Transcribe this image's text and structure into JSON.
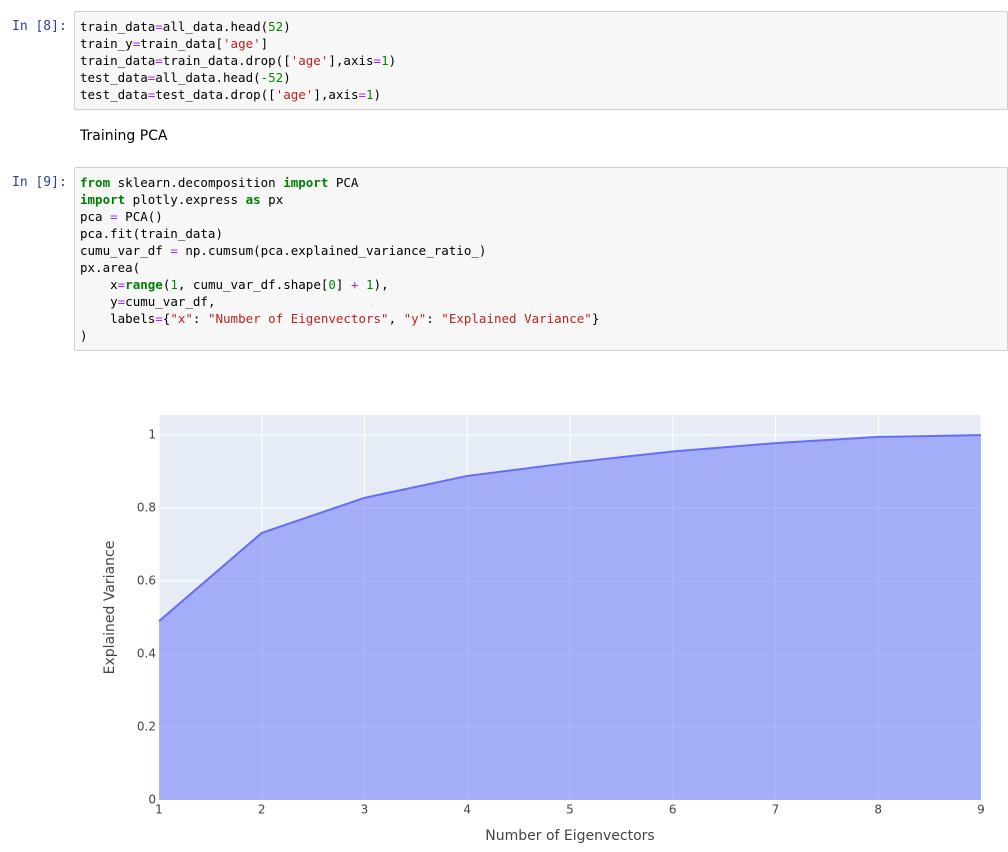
{
  "cells": [
    {
      "prompt": "In [8]:",
      "lines": [
        [
          "train_data",
          {
            "text": "=",
            "color": "#aa22ff"
          },
          "all_data.head(",
          {
            "text": "52",
            "color": "#008800"
          },
          ")"
        ],
        [
          "train_y",
          {
            "text": "=",
            "color": "#aa22ff"
          },
          "train_data[",
          {
            "text": "'age'",
            "color": "#ba2121"
          },
          "]"
        ],
        [
          "train_data",
          {
            "text": "=",
            "color": "#aa22ff"
          },
          "train_data.drop([",
          {
            "text": "'age'",
            "color": "#ba2121"
          },
          "],axis",
          {
            "text": "=",
            "color": "#aa22ff"
          },
          {
            "text": "1",
            "color": "#008800"
          },
          ")"
        ],
        [
          "test_data",
          {
            "text": "=",
            "color": "#aa22ff"
          },
          "all_data.head(",
          {
            "text": "-52",
            "color": "#008800"
          },
          ")"
        ],
        [
          "test_data",
          {
            "text": "=",
            "color": "#aa22ff"
          },
          "test_data.drop([",
          {
            "text": "'age'",
            "color": "#ba2121"
          },
          "],axis",
          {
            "text": "=",
            "color": "#aa22ff"
          },
          {
            "text": "1",
            "color": "#008800"
          },
          ")"
        ]
      ]
    },
    {
      "markdown": "Training PCA"
    },
    {
      "prompt": "In [9]:",
      "lines": [
        [
          {
            "text": "from",
            "color": "#008000"
          },
          " sklearn.decomposition ",
          {
            "text": "import",
            "color": "#008000"
          },
          " PCA"
        ],
        [
          {
            "text": "import",
            "color": "#008000"
          },
          " plotly.express ",
          {
            "text": "as",
            "color": "#008000"
          },
          " px"
        ],
        [
          "pca ",
          {
            "text": "=",
            "color": "#aa22ff"
          },
          " PCA()"
        ],
        [
          "pca.fit(train_data)"
        ],
        [
          "cumu_var_df ",
          {
            "text": "=",
            "color": "#aa22ff"
          },
          " np.cumsum(pca.explained_variance_ratio_)"
        ],
        [
          "px.area("
        ],
        [
          "    x",
          {
            "text": "=",
            "color": "#aa22ff"
          },
          {
            "text": "range",
            "color": "#008000"
          },
          "(",
          {
            "text": "1",
            "color": "#008800"
          },
          ", cumu_var_df.shape[",
          {
            "text": "0",
            "color": "#008800"
          },
          "] ",
          {
            "text": "+",
            "color": "#aa22ff"
          },
          " ",
          {
            "text": "1",
            "color": "#008800"
          },
          "),"
        ],
        [
          "    y",
          {
            "text": "=",
            "color": "#aa22ff"
          },
          "cumu_var_df,"
        ],
        [
          "    labels",
          {
            "text": "=",
            "color": "#aa22ff"
          },
          "{",
          {
            "text": "\"x\"",
            "color": "#ba2121"
          },
          ": ",
          {
            "text": "\"Number of Eigenvectors\"",
            "color": "#ba2121"
          },
          ", ",
          {
            "text": "\"y\"",
            "color": "#ba2121"
          },
          ": ",
          {
            "text": "\"Explained Variance\"",
            "color": "#ba2121"
          },
          "}"
        ],
        [
          ")"
        ]
      ]
    }
  ],
  "chart_data": {
    "type": "area",
    "x_label": "Number of Eigenvectors",
    "y_label": "Explained Variance",
    "x": [
      1,
      2,
      3,
      4,
      5,
      6,
      7,
      8,
      9
    ],
    "series": [
      {
        "color": "#636efa",
        "values": [
          0.49,
          0.732,
          0.828,
          0.888,
          0.924,
          0.955,
          0.978,
          0.995,
          1.0
        ]
      }
    ],
    "xlim": [
      1,
      9
    ],
    "xticks": [
      1,
      2,
      3,
      4,
      5,
      6,
      7,
      8,
      9
    ],
    "ylim": [
      0,
      1.055
    ],
    "yticks": [
      0,
      0.2,
      0.4,
      0.6,
      0.8,
      1
    ],
    "grid": true
  }
}
